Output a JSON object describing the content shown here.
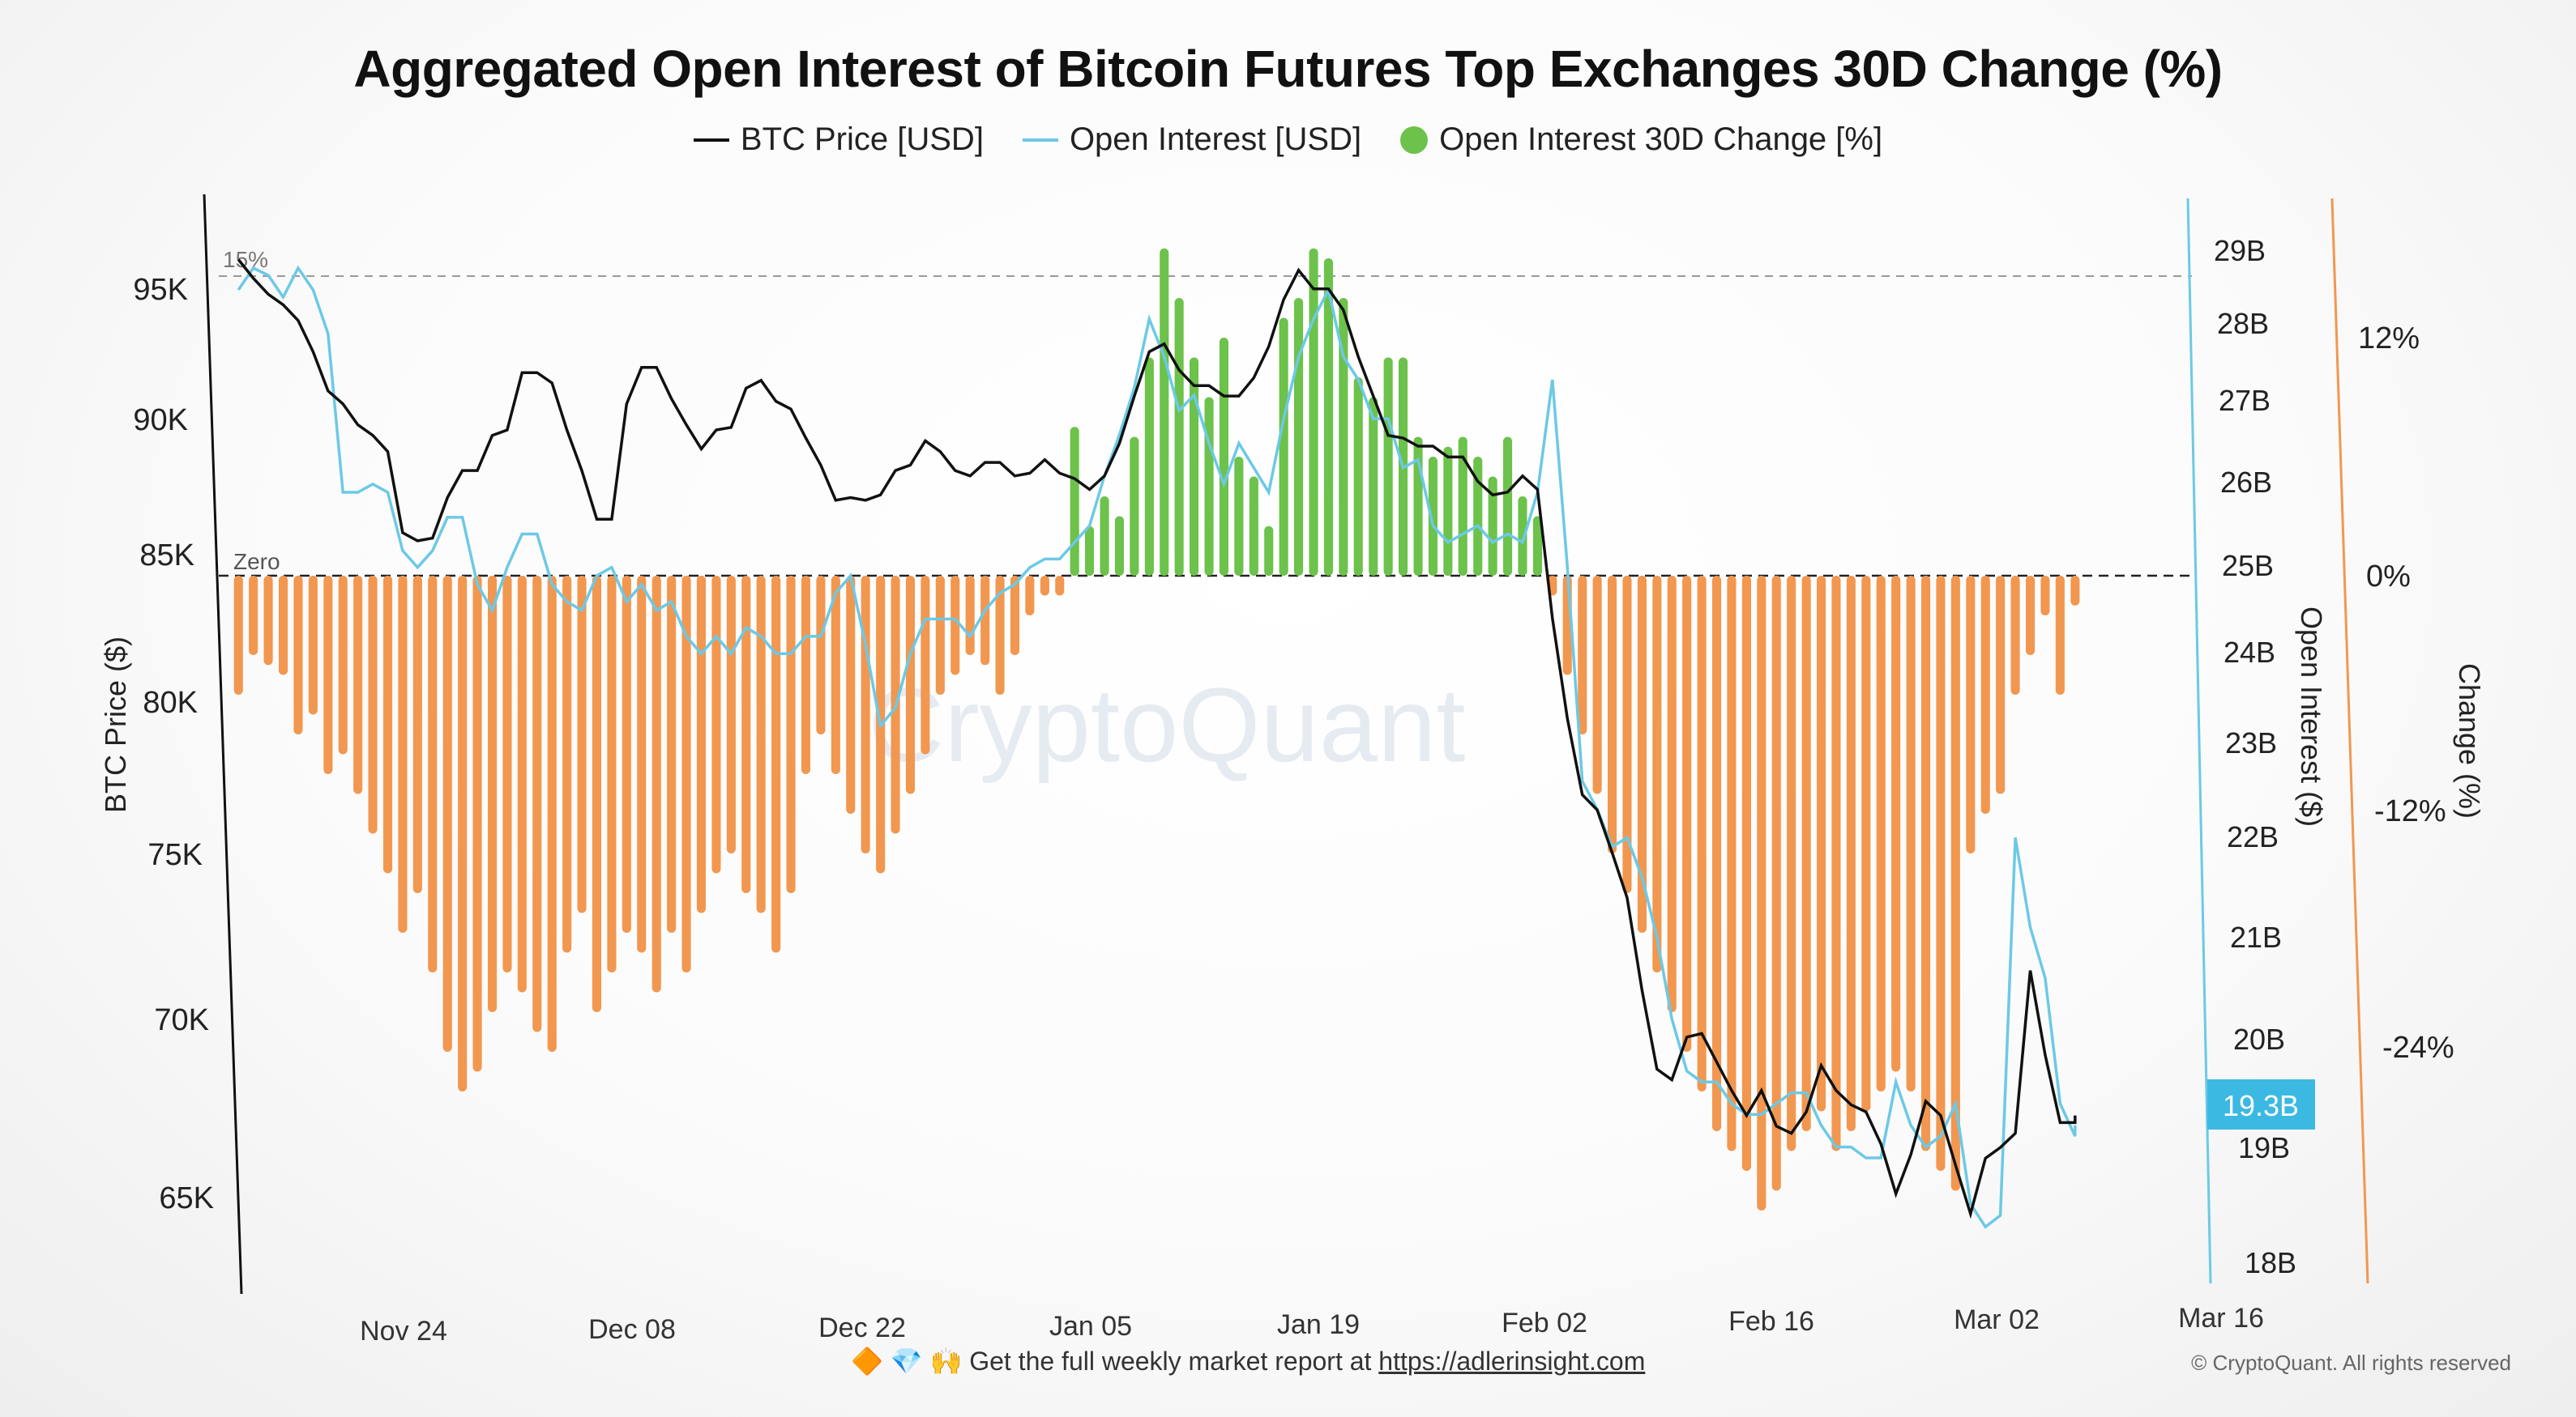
{
  "title": "Aggregated Open Interest of Bitcoin Futures Top Exchanges 30D Change (%)",
  "legend": [
    {
      "label": "BTC Price [USD]",
      "color": "#111111",
      "kind": "line"
    },
    {
      "label": "Open Interest [USD]",
      "color": "#6cc9e6",
      "kind": "line"
    },
    {
      "label": "Open Interest 30D Change [%]",
      "color": "#6cc24a",
      "kind": "dot"
    }
  ],
  "footer": {
    "icons": "🔶 💎 🙌",
    "text": "Get the full weekly market report at ",
    "link": "https://adlerinsight.com"
  },
  "copyright": "© CryptoQuant. All rights reserved",
  "watermark": "CryptoQuant",
  "colors": {
    "positive": "#6cc24a",
    "negative": "#f2974f",
    "oi": "#6cc9e6",
    "price": "#111111",
    "oi_badge": "#3cb9e2"
  },
  "chart_data": {
    "type": "bar",
    "title": "Aggregated Open Interest of Bitcoin Futures Top Exchanges 30D Change (%)",
    "x_ticks": [
      "Nov 24",
      "Dec 08",
      "Dec 22",
      "Jan 05",
      "Jan 19",
      "Feb 02",
      "Feb 16",
      "Mar 02",
      "Mar 16"
    ],
    "y_left": {
      "label": "BTC Price ($)",
      "ticks": [
        "95K",
        "90K",
        "85K",
        "80K",
        "75K",
        "70K",
        "65K"
      ],
      "range": [
        62000,
        98000
      ]
    },
    "y_right_oi": {
      "label": "Open Interest ($)",
      "ticks": [
        "29B",
        "28B",
        "27B",
        "26B",
        "25B",
        "24B",
        "23B",
        "22B",
        "21B",
        "20B",
        "19B",
        "18B"
      ],
      "current": "19.3B"
    },
    "y_right_change": {
      "label": "Change (%)",
      "ticks": [
        "12%",
        "0%",
        "-12%",
        "-24%"
      ],
      "range": [
        -36,
        19
      ]
    },
    "annotations": [
      {
        "label": "15%",
        "value": 15
      },
      {
        "label": "Zero",
        "value": 0
      }
    ],
    "series": [
      {
        "name": "Open Interest 30D Change [%]",
        "values": [
          -6,
          -4,
          -4.5,
          -5,
          -8,
          -7,
          -10,
          -9,
          -11,
          -13,
          -15,
          -18,
          -16,
          -20,
          -24,
          -26,
          -25,
          -22,
          -20,
          -21,
          -23,
          -24,
          -19,
          -17,
          -22,
          -20,
          -18,
          -19,
          -21,
          -18,
          -20,
          -17,
          -15,
          -14,
          -16,
          -17,
          -19,
          -16,
          -10,
          -8,
          -10,
          -12,
          -14,
          -15,
          -13,
          -11,
          -9,
          -6,
          -5,
          -4,
          -4.5,
          -6,
          -4,
          -2,
          -1,
          -1,
          7.5,
          2.5,
          4,
          3,
          7,
          11,
          16.5,
          14,
          11,
          9,
          12,
          6,
          5,
          2.5,
          13,
          14,
          16.5,
          16,
          14,
          10,
          9,
          11,
          11,
          7,
          6,
          6.5,
          7,
          6,
          5,
          7,
          4,
          3,
          -1,
          -5,
          -8,
          -11,
          -14,
          -16,
          -18,
          -20,
          -22,
          -24,
          -26,
          -28,
          -29,
          -30,
          -32,
          -31,
          -29,
          -28,
          -27,
          -29,
          -28,
          -27,
          -26,
          -25,
          -26,
          -29,
          -30,
          -31,
          -14,
          -12,
          -11,
          -6,
          -4,
          -2,
          -6,
          -1.5
        ],
        "x_range": [
          "2024-11-10",
          "2025-03-12"
        ]
      },
      {
        "name": "BTC Price [USD]",
        "note": "line from ~96K mid Nov to ~86K late Nov, ~90-94K Dec-Jan, peak ~96K Jan 19, decline to ~64K Mar, ~67K end"
      },
      {
        "name": "Open Interest [USD]",
        "note": "line following price, from ~28.5B to ~19.3B"
      }
    ]
  }
}
